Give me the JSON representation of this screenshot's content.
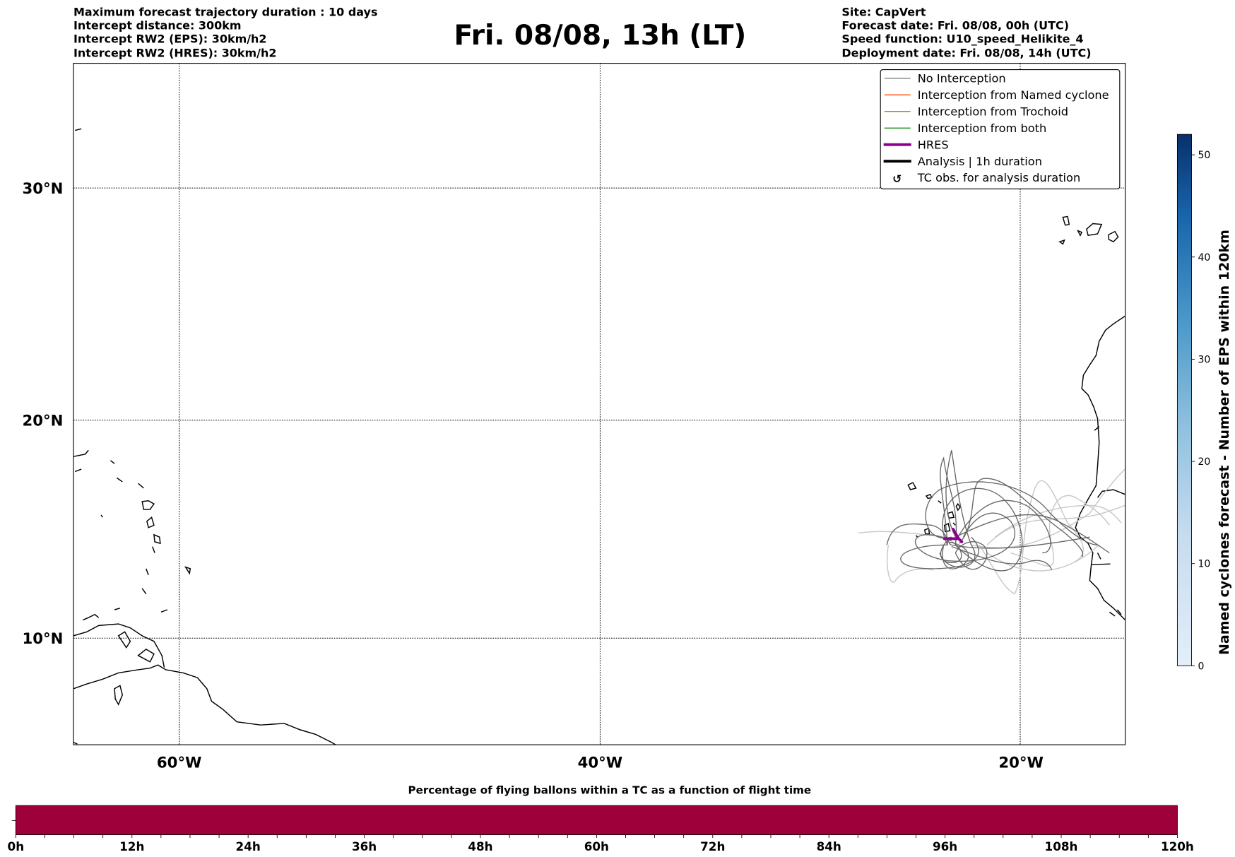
{
  "header_left": [
    "Maximum forecast trajectory duration : 10 days",
    "Intercept distance: 300km",
    "Intercept RW2 (EPS):  30km/h2",
    "Intercept RW2 (HRES): 30km/h2"
  ],
  "title": "Fri. 08/08, 13h (LT)",
  "header_right": [
    "Site: CapVert",
    "Forecast date: Fri. 08/08, 00h (UTC)",
    "Speed function: U10_speed_Helikite_4",
    "Deployment date: Fri. 08/08, 14h (UTC)"
  ],
  "map": {
    "lat_labels": [
      "30°N",
      "20°N",
      "10°N"
    ],
    "lon_labels": [
      "60°W",
      "40°W",
      "20°W"
    ]
  },
  "legend": [
    {
      "label": "No Interception",
      "color": "#808080"
    },
    {
      "label": "Interception from Named cyclone",
      "color": "#ff4500"
    },
    {
      "label": "Interception from Trochoid",
      "color": "#808000"
    },
    {
      "label": "Interception from both",
      "color": "#008000"
    },
    {
      "label": "HRES",
      "color": "#8b008b"
    },
    {
      "label": "Analysis | 1h duration",
      "color": "#000000"
    },
    {
      "label": "TC obs. for analysis duration",
      "icon": "tc-symbol"
    }
  ],
  "colorbar": {
    "label": "Named cyclones forecast - Number of EPS within 120km",
    "ticks": [
      "0",
      "10",
      "20",
      "30",
      "40",
      "50"
    ],
    "range": [
      0,
      52
    ]
  },
  "bottom_bar": {
    "title": "Percentage of flying ballons within a TC as a function of flight time",
    "ticks": [
      "0h",
      "12h",
      "24h",
      "36h",
      "48h",
      "60h",
      "72h",
      "84h",
      "96h",
      "108h",
      "120h"
    ],
    "fill_color": "#9e003a"
  }
}
